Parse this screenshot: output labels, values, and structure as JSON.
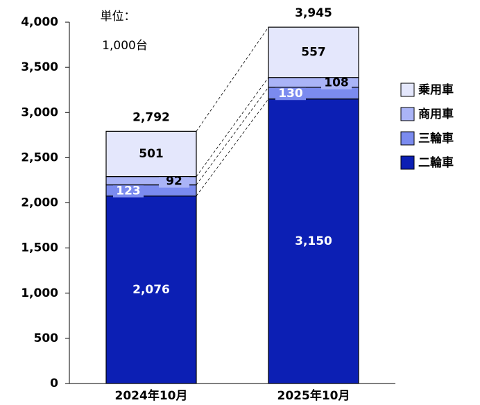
{
  "chart_data": {
    "type": "stacked_bar",
    "annotation": [
      "単位：",
      "1,000台"
    ],
    "categories": [
      "2024年10月",
      "2025年10月"
    ],
    "series": [
      {
        "name": "二輪車",
        "color": "#0c1fb4",
        "values": [
          2076,
          3150
        ]
      },
      {
        "name": "三輪車",
        "color": "#7b8bef",
        "values": [
          123,
          130
        ]
      },
      {
        "name": "商用車",
        "color": "#aab4f7",
        "values": [
          92,
          108
        ]
      },
      {
        "name": "乗用車",
        "color": "#e4e7fc",
        "values": [
          501,
          557
        ]
      }
    ],
    "totals": [
      2792,
      3945
    ],
    "total_labels": [
      "2,792",
      "3,945"
    ],
    "value_labels": [
      [
        "2,076",
        "3,150"
      ],
      null,
      null,
      null
    ],
    "ylim": [
      0,
      4000
    ],
    "yticks": [
      0,
      500,
      {
        "value": 1000,
        "label": "1,000"
      },
      {
        "value": 1500,
        "label": "1,500"
      },
      {
        "value": 2000,
        "label": "2,000"
      },
      {
        "value": 2500,
        "label": "2,500"
      },
      {
        "value": 3000,
        "label": "3,000"
      },
      {
        "value": 3500,
        "label": "3,500"
      },
      {
        "value": 4000,
        "label": "4,000"
      }
    ],
    "legend": "right"
  }
}
